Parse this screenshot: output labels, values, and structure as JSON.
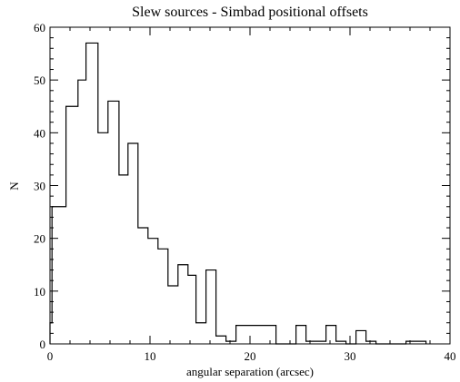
{
  "chart_data": {
    "type": "bar",
    "style": "step-histogram",
    "title": "Slew sources - Simbad positional offsets",
    "xlabel": "angular separation (arcsec)",
    "ylabel": "N",
    "xlim": [
      0,
      40
    ],
    "ylim": [
      0,
      60
    ],
    "xticks": [
      0,
      10,
      20,
      30,
      40
    ],
    "yticks": [
      0,
      10,
      20,
      30,
      40,
      50,
      60
    ],
    "grid": false,
    "bins": [
      {
        "x0": 0.0,
        "x1": 0.2,
        "value": 4
      },
      {
        "x0": 0.2,
        "x1": 1.6,
        "value": 26
      },
      {
        "x0": 1.6,
        "x1": 2.8,
        "value": 45
      },
      {
        "x0": 2.8,
        "x1": 3.6,
        "value": 50
      },
      {
        "x0": 3.6,
        "x1": 4.8,
        "value": 57
      },
      {
        "x0": 4.8,
        "x1": 5.8,
        "value": 40
      },
      {
        "x0": 5.8,
        "x1": 6.9,
        "value": 46
      },
      {
        "x0": 6.9,
        "x1": 7.8,
        "value": 32
      },
      {
        "x0": 7.8,
        "x1": 8.8,
        "value": 38
      },
      {
        "x0": 8.8,
        "x1": 9.8,
        "value": 22
      },
      {
        "x0": 9.8,
        "x1": 10.8,
        "value": 20
      },
      {
        "x0": 10.8,
        "x1": 11.8,
        "value": 18
      },
      {
        "x0": 11.8,
        "x1": 12.8,
        "value": 11
      },
      {
        "x0": 12.8,
        "x1": 13.8,
        "value": 15
      },
      {
        "x0": 13.8,
        "x1": 14.6,
        "value": 13
      },
      {
        "x0": 14.6,
        "x1": 15.6,
        "value": 4
      },
      {
        "x0": 15.6,
        "x1": 16.6,
        "value": 14
      },
      {
        "x0": 16.6,
        "x1": 17.6,
        "value": 1.5
      },
      {
        "x0": 17.6,
        "x1": 18.6,
        "value": 0.5
      },
      {
        "x0": 18.6,
        "x1": 22.6,
        "value": 3.5
      },
      {
        "x0": 22.6,
        "x1": 24.6,
        "value": 0
      },
      {
        "x0": 24.6,
        "x1": 25.6,
        "value": 3.5
      },
      {
        "x0": 25.6,
        "x1": 27.6,
        "value": 0.5
      },
      {
        "x0": 27.6,
        "x1": 28.6,
        "value": 3.5
      },
      {
        "x0": 28.6,
        "x1": 29.6,
        "value": 0.5
      },
      {
        "x0": 29.6,
        "x1": 30.6,
        "value": 0
      },
      {
        "x0": 30.6,
        "x1": 31.6,
        "value": 2.5
      },
      {
        "x0": 31.6,
        "x1": 32.6,
        "value": 0.5
      },
      {
        "x0": 32.6,
        "x1": 35.6,
        "value": 0
      },
      {
        "x0": 35.6,
        "x1": 37.6,
        "value": 0.5
      }
    ]
  }
}
